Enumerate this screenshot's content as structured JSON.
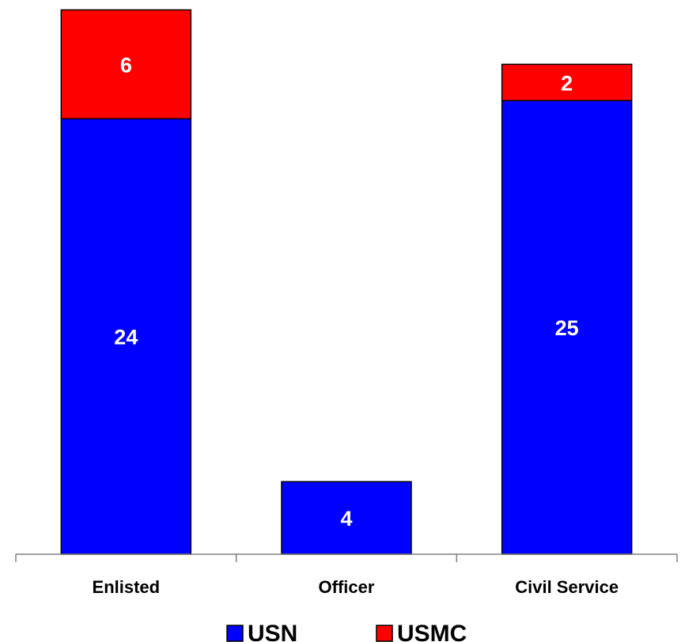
{
  "chart_data": {
    "type": "bar",
    "stacked": true,
    "title": "",
    "xlabel": "",
    "ylabel": "",
    "categories": [
      "Enlisted",
      "Officer",
      "Civil Service"
    ],
    "series": [
      {
        "name": "USN",
        "values": [
          24,
          4,
          25
        ],
        "color": "#0000ff"
      },
      {
        "name": "USMC",
        "values": [
          6,
          0,
          2
        ],
        "color": "#ff0000"
      }
    ],
    "ylim": [
      0,
      30
    ],
    "grid": false,
    "legend": "bottom"
  }
}
